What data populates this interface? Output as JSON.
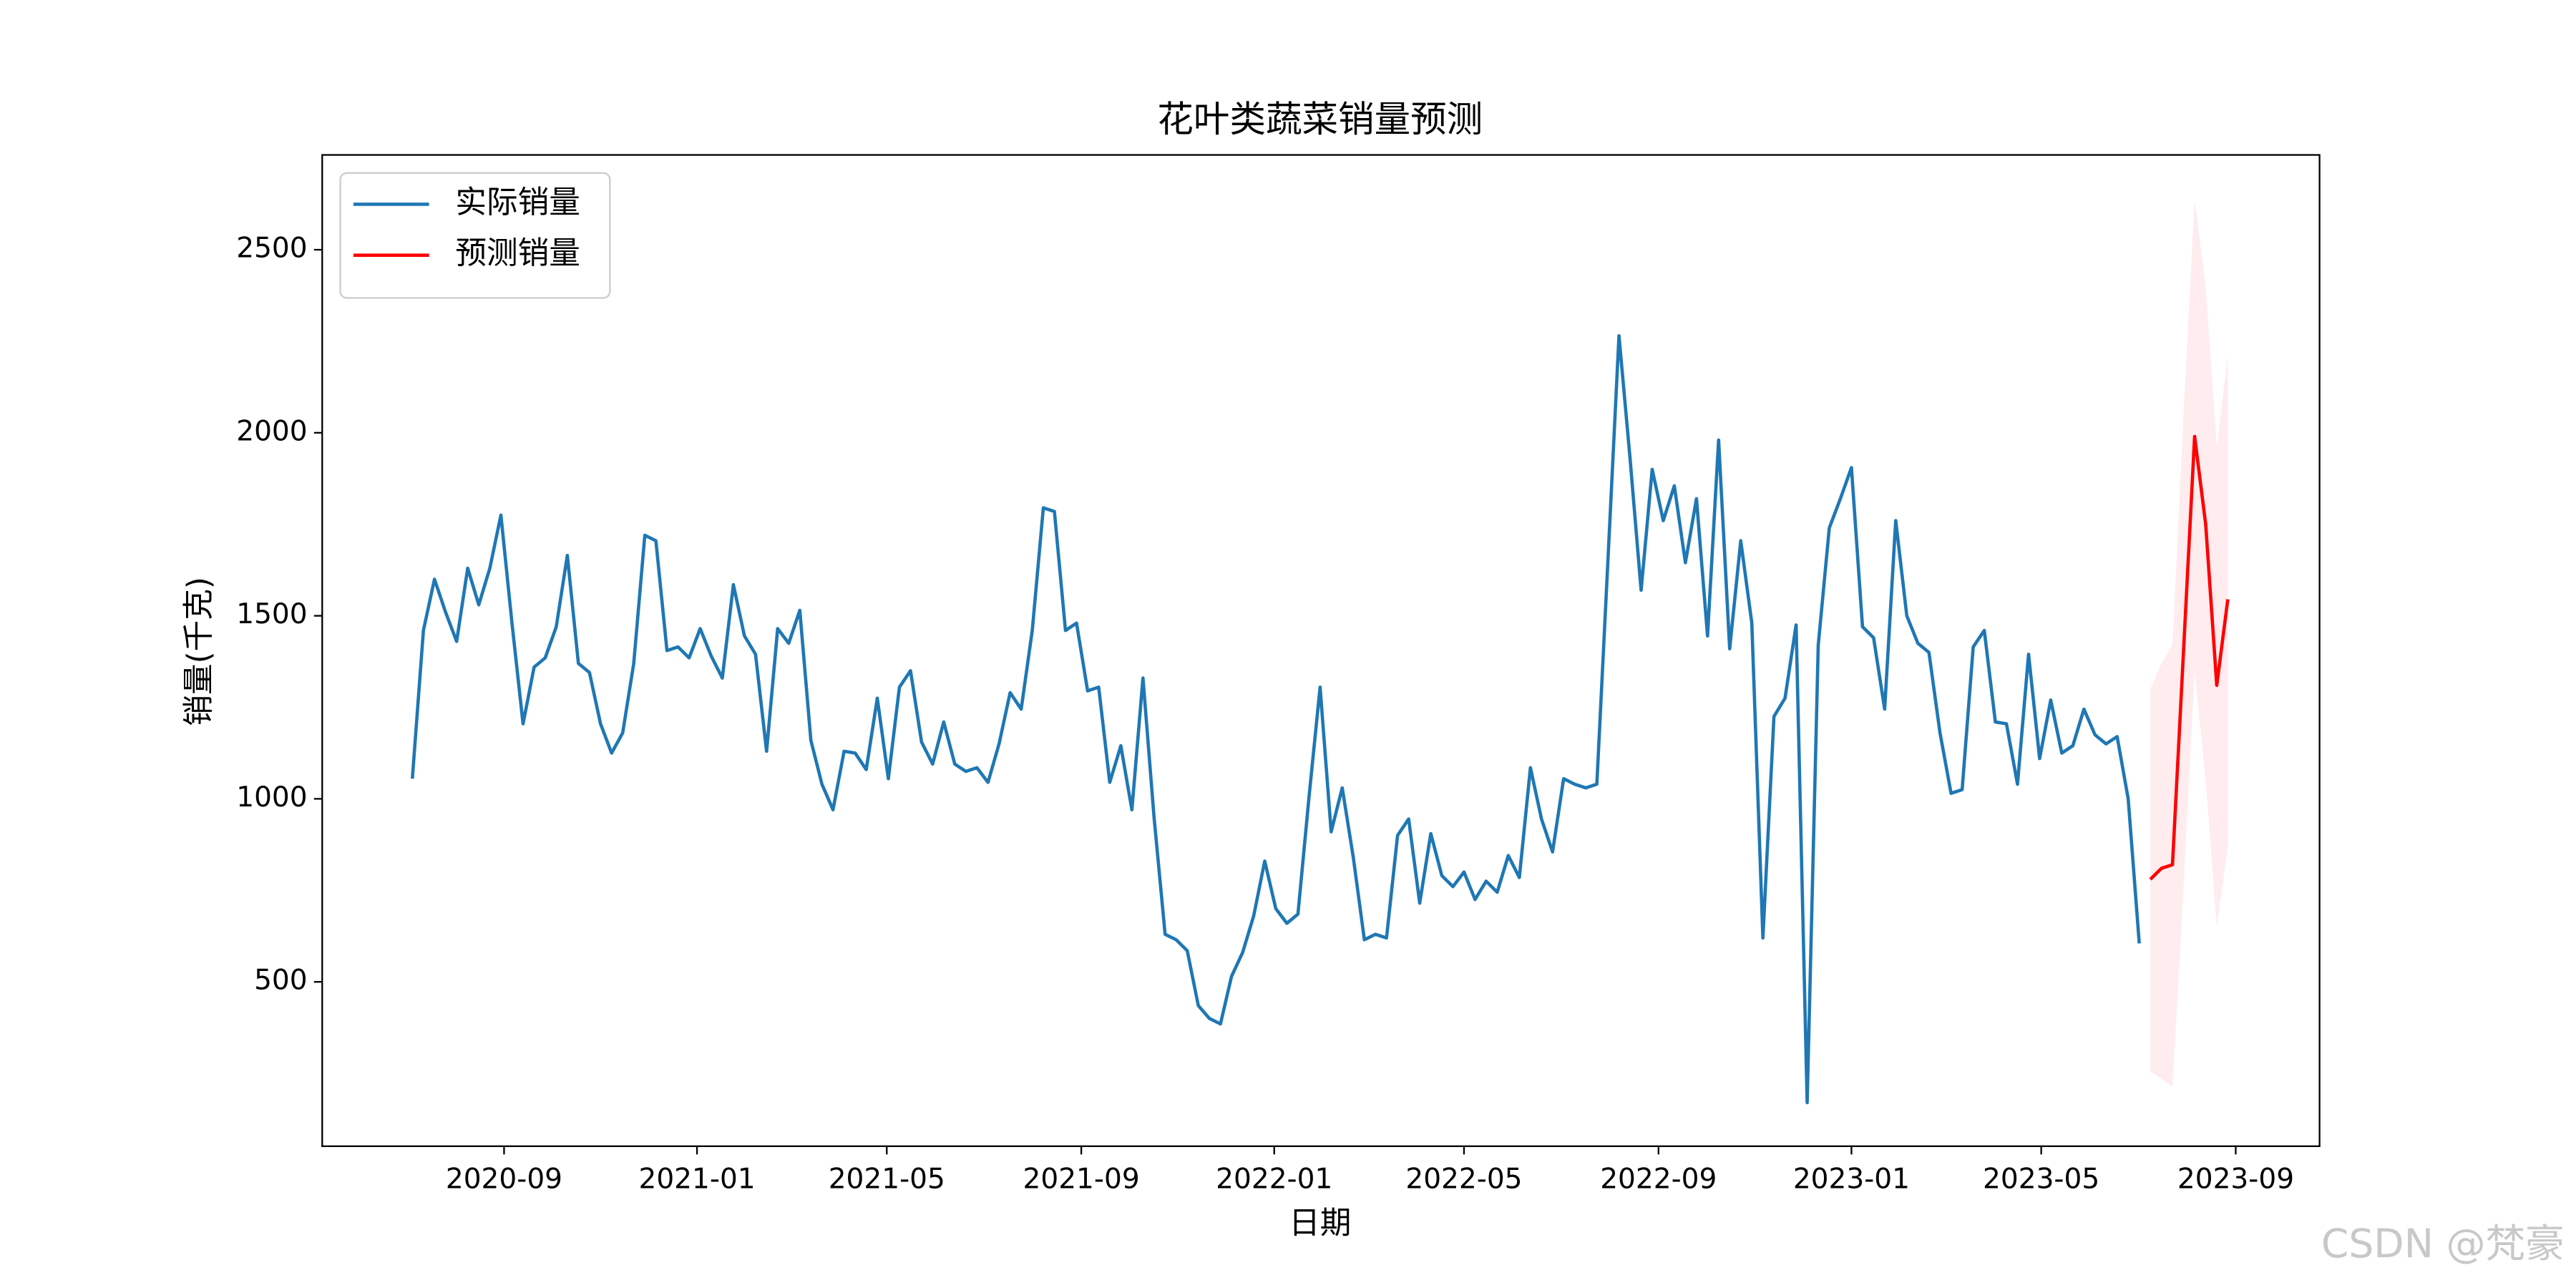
{
  "chart_data": {
    "type": "line",
    "title": "花叶类蔬菜销量预测",
    "xlabel": "日期",
    "ylabel": "销量(千克)",
    "watermark": "CSDN @梵豪",
    "xlim": [
      "2020-05-09",
      "2023-10-24"
    ],
    "ylim": [
      51,
      2759
    ],
    "xticks": [
      "2020-09",
      "2021-01",
      "2021-05",
      "2021-09",
      "2022-01",
      "2022-05",
      "2022-09",
      "2023-01",
      "2023-05",
      "2023-09"
    ],
    "yticks": [
      500,
      1000,
      1500,
      2000,
      2500
    ],
    "legend": "upper left",
    "series": [
      {
        "name": "实际销量",
        "color": "#1f77b4",
        "x": [
          "2020-07-05",
          "2020-07-12",
          "2020-07-19",
          "2020-07-26",
          "2020-08-02",
          "2020-08-09",
          "2020-08-16",
          "2020-08-23",
          "2020-08-30",
          "2020-09-06",
          "2020-09-13",
          "2020-09-20",
          "2020-09-27",
          "2020-10-04",
          "2020-10-11",
          "2020-10-18",
          "2020-10-25",
          "2020-11-01",
          "2020-11-08",
          "2020-11-15",
          "2020-11-22",
          "2020-11-29",
          "2020-12-06",
          "2020-12-13",
          "2020-12-20",
          "2020-12-27",
          "2021-01-03",
          "2021-01-10",
          "2021-01-17",
          "2021-01-24",
          "2021-01-31",
          "2021-02-07",
          "2021-02-14",
          "2021-02-21",
          "2021-02-28",
          "2021-03-07",
          "2021-03-14",
          "2021-03-21",
          "2021-03-28",
          "2021-04-04",
          "2021-04-11",
          "2021-04-18",
          "2021-04-25",
          "2021-05-02",
          "2021-05-09",
          "2021-05-16",
          "2021-05-23",
          "2021-05-30",
          "2021-06-06",
          "2021-06-13",
          "2021-06-20",
          "2021-06-27",
          "2021-07-04",
          "2021-07-11",
          "2021-07-18",
          "2021-07-25",
          "2021-08-01",
          "2021-08-08",
          "2021-08-15",
          "2021-08-22",
          "2021-08-29",
          "2021-09-05",
          "2021-09-12",
          "2021-09-19",
          "2021-09-26",
          "2021-10-03",
          "2021-10-10",
          "2021-10-17",
          "2021-10-24",
          "2021-10-31",
          "2021-11-07",
          "2021-11-14",
          "2021-11-21",
          "2021-11-28",
          "2021-12-05",
          "2021-12-12",
          "2021-12-19",
          "2021-12-26",
          "2022-01-02",
          "2022-01-09",
          "2022-01-16",
          "2022-01-23",
          "2022-01-30",
          "2022-02-06",
          "2022-02-13",
          "2022-02-20",
          "2022-02-27",
          "2022-03-06",
          "2022-03-13",
          "2022-03-20",
          "2022-03-27",
          "2022-04-03",
          "2022-04-10",
          "2022-04-17",
          "2022-04-24",
          "2022-05-01",
          "2022-05-08",
          "2022-05-15",
          "2022-05-22",
          "2022-05-29",
          "2022-06-05",
          "2022-06-12",
          "2022-06-19",
          "2022-06-26",
          "2022-07-03",
          "2022-07-10",
          "2022-07-17",
          "2022-07-24",
          "2022-07-31",
          "2022-08-07",
          "2022-08-14",
          "2022-08-21",
          "2022-08-28",
          "2022-09-04",
          "2022-09-11",
          "2022-09-18",
          "2022-09-25",
          "2022-10-02",
          "2022-10-09",
          "2022-10-16",
          "2022-10-23",
          "2022-10-30",
          "2022-11-06",
          "2022-11-13",
          "2022-11-20",
          "2022-11-27",
          "2022-12-04",
          "2022-12-11",
          "2022-12-18",
          "2022-12-25",
          "2023-01-01",
          "2023-01-08",
          "2023-01-15",
          "2023-01-22",
          "2023-01-29",
          "2023-02-05",
          "2023-02-12",
          "2023-02-19",
          "2023-02-26",
          "2023-03-05",
          "2023-03-12",
          "2023-03-19",
          "2023-03-26",
          "2023-04-02",
          "2023-04-09",
          "2023-04-16",
          "2023-04-23",
          "2023-04-30",
          "2023-05-07",
          "2023-05-14",
          "2023-05-21",
          "2023-05-28",
          "2023-06-04",
          "2023-06-11",
          "2023-06-18",
          "2023-06-25",
          "2023-07-02"
        ],
        "values": [
          1055,
          1460,
          1600,
          1510,
          1430,
          1630,
          1530,
          1630,
          1775,
          1480,
          1205,
          1360,
          1385,
          1470,
          1665,
          1370,
          1345,
          1205,
          1125,
          1180,
          1370,
          1720,
          1705,
          1405,
          1415,
          1385,
          1465,
          1390,
          1330,
          1585,
          1445,
          1395,
          1130,
          1465,
          1425,
          1515,
          1160,
          1040,
          970,
          1130,
          1125,
          1080,
          1275,
          1055,
          1305,
          1350,
          1155,
          1095,
          1210,
          1095,
          1075,
          1085,
          1045,
          1150,
          1290,
          1245,
          1460,
          1795,
          1785,
          1460,
          1480,
          1295,
          1305,
          1045,
          1145,
          970,
          1330,
          950,
          630,
          615,
          585,
          435,
          400,
          385,
          515,
          580,
          680,
          830,
          700,
          660,
          685,
          1005,
          1305,
          910,
          1030,
          840,
          615,
          630,
          620,
          900,
          945,
          715,
          905,
          790,
          760,
          800,
          725,
          775,
          745,
          845,
          785,
          1085,
          945,
          855,
          1055,
          1040,
          1030,
          1040,
          1650,
          2265,
          1930,
          1570,
          1900,
          1760,
          1855,
          1645,
          1820,
          1445,
          1980,
          1410,
          1705,
          1480,
          620,
          1225,
          1275,
          1475,
          170,
          1420,
          1740,
          1820,
          1905,
          1470,
          1440,
          1245,
          1760,
          1500,
          1425,
          1400,
          1180,
          1015,
          1025,
          1415,
          1460,
          1210,
          1205,
          1040,
          1395,
          1110,
          1270,
          1125,
          1145,
          1245,
          1175,
          1150,
          1170,
          1000,
          605
        ]
      },
      {
        "name": "预测销量",
        "color": "red",
        "band_color": "pink",
        "x": [
          "2023-07-09",
          "2023-07-16",
          "2023-07-23",
          "2023-07-30",
          "2023-08-06",
          "2023-08-13",
          "2023-08-20",
          "2023-08-27"
        ],
        "values": [
          780,
          810,
          820,
          1405,
          1990,
          1750,
          1310,
          1545
        ],
        "lower": [
          255,
          235,
          215,
          760,
          1350,
          1050,
          650,
          870
        ],
        "upper": [
          1300,
          1370,
          1420,
          2050,
          2635,
          2400,
          1960,
          2210
        ]
      }
    ]
  }
}
